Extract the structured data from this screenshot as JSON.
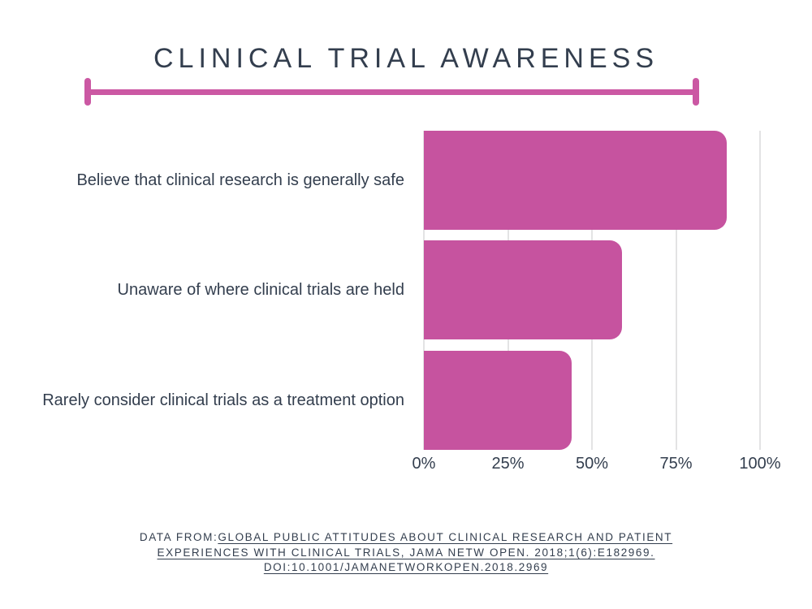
{
  "title": "CLINICAL TRIAL AWARENESS",
  "chart_data": {
    "type": "bar",
    "orientation": "horizontal",
    "title": "CLINICAL TRIAL AWARENESS",
    "categories": [
      "Believe that clinical research is generally safe",
      "Unaware of where clinical trials are held",
      "Rarely consider clinical trials as a treatment option"
    ],
    "values": [
      90,
      59,
      44
    ],
    "unit": "%",
    "xlim": [
      0,
      100
    ],
    "x_ticks": [
      "0%",
      "25%",
      "50%",
      "75%",
      "100%"
    ],
    "grid": true,
    "legend": false,
    "bar_color": "#c6539f"
  },
  "footer": {
    "prefix": "DATA FROM:",
    "citation_line1": "GLOBAL PUBLIC ATTITUDES ABOUT CLINICAL RESEARCH AND PATIENT",
    "citation_line2": "EXPERIENCES WITH CLINICAL TRIALS, JAMA NETW OPEN. 2018;1(6):E182969.",
    "citation_line3": "DOI:10.1001/JAMANETWORKOPEN.2018.2969"
  },
  "colors": {
    "bar": "#c6539f",
    "divider": "#cb58a3",
    "text": "#333e4e",
    "gridline": "#e3e3e4",
    "background": "#ffffff"
  }
}
